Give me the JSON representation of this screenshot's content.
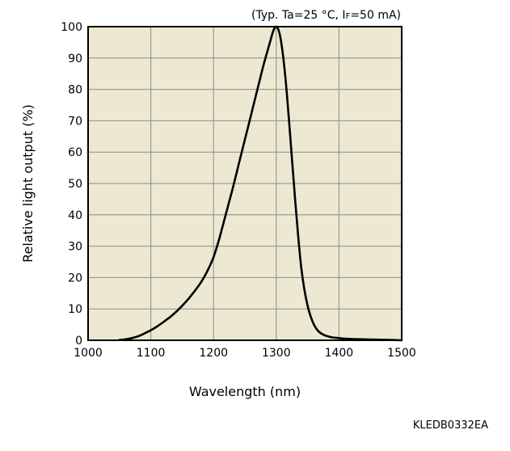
{
  "note": {
    "prefix": "(Typ. Ta=25 °C, I",
    "subscript": "F",
    "suffix": "=50 mA)"
  },
  "figure_code": "KLEDB0332EA",
  "chart_data": {
    "type": "line",
    "title": "",
    "xlabel": "Wavelength (nm)",
    "ylabel": "Relative light output (%)",
    "xlim": [
      1000,
      1500
    ],
    "ylim": [
      0,
      100
    ],
    "x_ticks": [
      1000,
      1100,
      1200,
      1300,
      1400,
      1500
    ],
    "y_ticks": [
      0,
      10,
      20,
      30,
      40,
      50,
      60,
      70,
      80,
      90,
      100
    ],
    "grid": true,
    "colors": {
      "line": "#000000",
      "plot_background": "#ede8d2",
      "grid": "#8c8c8c"
    },
    "series": [
      {
        "x": [
          1050,
          1060,
          1070,
          1080,
          1090,
          1100,
          1110,
          1120,
          1130,
          1140,
          1150,
          1160,
          1170,
          1180,
          1190,
          1200,
          1210,
          1220,
          1230,
          1240,
          1250,
          1260,
          1270,
          1280,
          1290,
          1295,
          1300,
          1305,
          1310,
          1315,
          1320,
          1325,
          1330,
          1335,
          1340,
          1345,
          1350,
          1355,
          1360,
          1365,
          1370,
          1375,
          1380,
          1385,
          1390,
          1395,
          1400,
          1410,
          1420,
          1440,
          1460,
          1480,
          1500
        ],
        "y": [
          0.1,
          0.3,
          0.7,
          1.3,
          2.2,
          3.2,
          4.4,
          5.8,
          7.3,
          9.0,
          11.0,
          13.2,
          15.7,
          18.5,
          22.0,
          26.5,
          33.0,
          40.5,
          48.0,
          56.0,
          64.0,
          72.0,
          80.0,
          88.0,
          95.0,
          98.5,
          100.0,
          98.0,
          92.0,
          83.0,
          71.0,
          58.0,
          45.0,
          33.0,
          23.0,
          16.0,
          11.0,
          7.5,
          5.0,
          3.4,
          2.4,
          1.8,
          1.4,
          1.1,
          0.9,
          0.8,
          0.7,
          0.5,
          0.4,
          0.3,
          0.2,
          0.1,
          0.0
        ]
      }
    ]
  }
}
